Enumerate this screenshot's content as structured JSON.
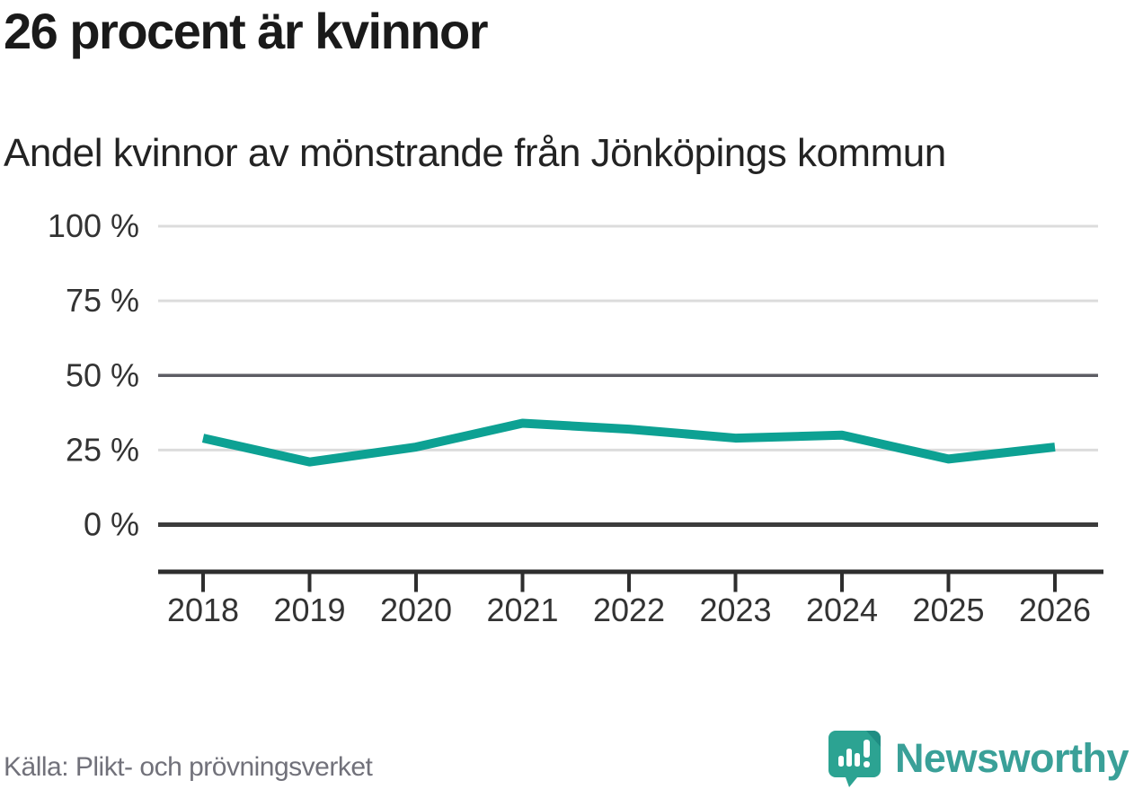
{
  "header": {
    "title": "26 procent är kvinnor",
    "subtitle": "Andel kvinnor av mönstrande från Jönköpings kommun"
  },
  "footer": {
    "source": "Källa: Plikt- och prövningsverket",
    "brand_name": "Newsworthy"
  },
  "chart_data": {
    "type": "line",
    "title": "26 procent är kvinnor",
    "subtitle": "Andel kvinnor av mönstrande från Jönköpings kommun",
    "categories": [
      "2018",
      "2019",
      "2020",
      "2021",
      "2022",
      "2023",
      "2024",
      "2025",
      "2026"
    ],
    "series": [
      {
        "name": "Andel kvinnor av mönstrande",
        "values": [
          29,
          21,
          26,
          34,
          32,
          29,
          30,
          22,
          26
        ]
      }
    ],
    "unit": "%",
    "ylim": [
      0,
      100
    ],
    "yticks": [
      {
        "value": 100,
        "label": "100 %"
      },
      {
        "value": 75,
        "label": "75 %"
      },
      {
        "value": 50,
        "label": "50 %"
      },
      {
        "value": 25,
        "label": "25 %"
      },
      {
        "value": 0,
        "label": "0 %"
      }
    ],
    "grid": true,
    "legend": "none",
    "source": "Källa: Plikt- och prövningsverket"
  },
  "colors": {
    "series_line": "#0da193",
    "grid_light": "#dcdcdc",
    "grid_mid": "#5d5d64",
    "zero_line": "#3c3c3c",
    "axis_line": "#2e2e2e",
    "tick_text": "#333333",
    "brand_teal": "#3aa098",
    "logo_bubble": "#2ca392",
    "logo_fold": "#1d8a80"
  }
}
